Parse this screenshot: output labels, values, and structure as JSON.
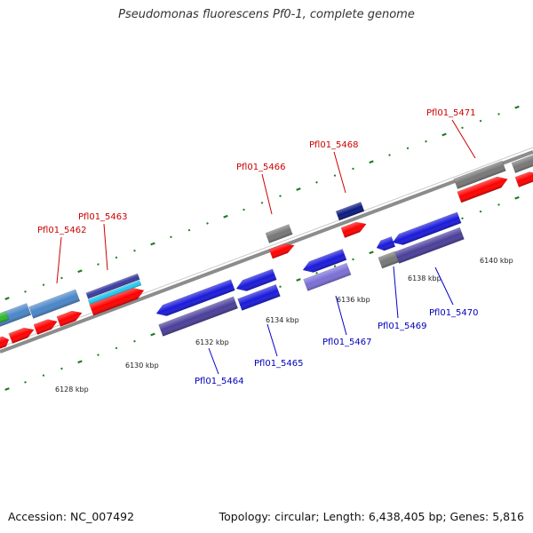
{
  "title": "Pseudomonas fluorescens Pf0-1, complete genome",
  "footer": {
    "accession": "Accession: NC_007492",
    "summary": "Topology: circular; Length: 6,438,405 bp; Genes: 5,816"
  },
  "colors": {
    "backbone": "#8c8c8c",
    "tick": "#1f7a1f",
    "forward_label": "#cc0000",
    "reverse_label": "#0000bb",
    "label_line_forward": "#cc0000",
    "label_line_reverse": "#0000cc"
  },
  "kbp_ticks": [
    "6128 kbp",
    "6130 kbp",
    "6132 kbp",
    "6134 kbp",
    "6136 kbp",
    "6138 kbp",
    "6140 kbp"
  ],
  "forward_labels": [
    "Pfl01_5462",
    "Pfl01_5463",
    "Pfl01_5466",
    "Pfl01_5468",
    "Pfl01_5471"
  ],
  "reverse_labels": [
    "Pfl01_5464",
    "Pfl01_5465",
    "Pfl01_5467",
    "Pfl01_5469",
    "Pfl01_5470"
  ]
}
